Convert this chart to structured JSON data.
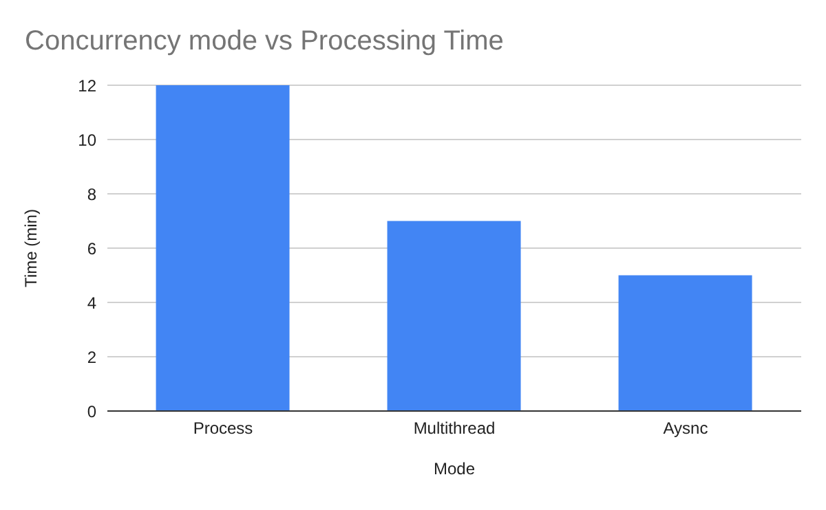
{
  "chart_data": {
    "type": "bar",
    "title": "Concurrency mode vs Processing Time",
    "xlabel": "Mode",
    "ylabel": "Time (min)",
    "categories": [
      "Process",
      "Multithread",
      "Aysnc"
    ],
    "values": [
      12,
      7,
      5
    ],
    "color": "#4285f4",
    "ylim": [
      0,
      12
    ],
    "yticks": [
      0,
      2,
      4,
      6,
      8,
      10,
      12
    ],
    "grid": "y",
    "legend": false
  }
}
